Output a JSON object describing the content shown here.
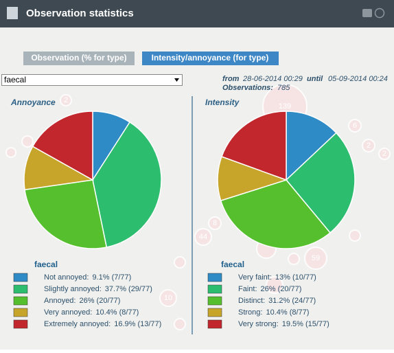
{
  "window_title": "Observation statistics",
  "tabs": [
    "Observation (% for type)",
    "Intensity/annoyance (for type)"
  ],
  "dropdown": "faecal",
  "period": {
    "from_label": "from",
    "from": "28-06-2014 00:29",
    "until_label": "until",
    "until": "05-09-2014 00:24",
    "count_label": "Observations:",
    "count": "785"
  },
  "map_markers": [
    "139",
    "6",
    "2",
    "2",
    "8",
    "44",
    "59",
    "10",
    "2"
  ],
  "chart_data": [
    {
      "type": "pie",
      "title": "Annoyance",
      "legend_title": "faecal",
      "categories": [
        "Not annoyed:",
        "Slightly annoyed:",
        "Annoyed:",
        "Very annoyed:",
        "Extremely annoyed:"
      ],
      "values": [
        9.1,
        37.7,
        26,
        10.4,
        16.9
      ],
      "value_labels": [
        "9.1% (7/77)",
        "37.7% (29/77)",
        "26% (20/77)",
        "10.4% (8/77)",
        "16.9% (13/77)"
      ],
      "colors": [
        "#2e8bc6",
        "#2dbd6e",
        "#55bf2d",
        "#c7a42a",
        "#c1272d"
      ]
    },
    {
      "type": "pie",
      "title": "Intensity",
      "legend_title": "faecal",
      "categories": [
        "Very faint:",
        "Faint:",
        "Distinct:",
        "Strong:",
        "Very strong:"
      ],
      "values": [
        13,
        26,
        31.2,
        10.4,
        19.5
      ],
      "value_labels": [
        "13% (10/77)",
        "26% (20/77)",
        "31.2% (24/77)",
        "10.4% (8/77)",
        "19.5% (15/77)"
      ],
      "colors": [
        "#2e8bc6",
        "#2dbd6e",
        "#55bf2d",
        "#c7a42a",
        "#c1272d"
      ]
    }
  ]
}
